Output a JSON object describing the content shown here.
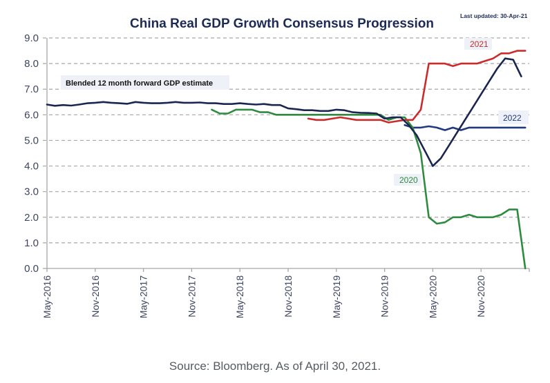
{
  "chart_data": {
    "type": "line",
    "title": "China Real GDP Growth Consensus Progression",
    "last_updated": "Last updated:  30-Apr-21",
    "xlabel": "",
    "ylabel": "",
    "ylim": [
      0,
      9
    ],
    "yticks": [
      "0.0",
      "1.0",
      "2.0",
      "3.0",
      "4.0",
      "5.0",
      "6.0",
      "7.0",
      "8.0",
      "9.0"
    ],
    "x_unit": "months since May-2016",
    "xlim": [
      0,
      60
    ],
    "xticks": [
      {
        "label": "May-2016",
        "x": 0
      },
      {
        "label": "Nov-2016",
        "x": 6
      },
      {
        "label": "May-2017",
        "x": 12
      },
      {
        "label": "Nov-2017",
        "x": 18
      },
      {
        "label": "May-2018",
        "x": 24
      },
      {
        "label": "Nov-2018",
        "x": 30
      },
      {
        "label": "May-2019",
        "x": 36
      },
      {
        "label": "Nov-2019",
        "x": 42
      },
      {
        "label": "May-2020",
        "x": 48
      },
      {
        "label": "Nov-2020",
        "x": 54
      }
    ],
    "grid": true,
    "annotation": "Blended 12 month forward GDP estimate",
    "series": [
      {
        "name": "Blended 12 month forward GDP estimate",
        "color": "#1a2550",
        "x": [
          0,
          1,
          2,
          3,
          4,
          5,
          6,
          7,
          8,
          9,
          10,
          11,
          12,
          13,
          14,
          15,
          16,
          17,
          18,
          19,
          20,
          21,
          22,
          23,
          24,
          25,
          26,
          27,
          28,
          29,
          30,
          31,
          32,
          33,
          34,
          35,
          36,
          37,
          38,
          39,
          40,
          41,
          42,
          43,
          44,
          45,
          46,
          47,
          48,
          49,
          50,
          51,
          52,
          53,
          54,
          55,
          56,
          57,
          58,
          59
        ],
        "values": [
          6.4,
          6.35,
          6.38,
          6.36,
          6.4,
          6.45,
          6.47,
          6.5,
          6.47,
          6.45,
          6.43,
          6.5,
          6.47,
          6.45,
          6.45,
          6.47,
          6.5,
          6.47,
          6.47,
          6.48,
          6.45,
          6.45,
          6.42,
          6.42,
          6.45,
          6.42,
          6.4,
          6.42,
          6.38,
          6.38,
          6.25,
          6.22,
          6.18,
          6.18,
          6.15,
          6.15,
          6.2,
          6.18,
          6.1,
          6.08,
          6.07,
          6.05,
          5.85,
          5.9,
          5.9,
          5.6,
          5.2,
          4.6,
          4.0,
          4.3,
          4.8,
          5.3,
          5.8,
          6.3,
          6.8,
          7.3,
          7.8,
          8.2,
          8.15,
          7.5
        ]
      },
      {
        "name": "2020",
        "color": "#2e8b3e",
        "x": [
          20.5,
          21.5,
          22.5,
          23.5,
          24.5,
          25.5,
          26.5,
          27.5,
          28.5,
          29.5,
          30.5,
          31.5,
          32.5,
          33.5,
          34.5,
          35.5,
          36.5,
          37.5,
          38.5,
          39.5,
          40.5,
          41.5,
          42.5,
          43.5,
          44.5,
          45.5,
          46.5,
          47.5,
          48.5,
          49.5,
          50.5,
          51.5,
          52.5,
          53.5,
          54.5,
          55.5,
          56.5,
          57.5,
          58.5,
          59.5
        ],
        "values": [
          6.2,
          6.05,
          6.05,
          6.2,
          6.2,
          6.2,
          6.1,
          6.1,
          6.0,
          6.0,
          6.0,
          6.0,
          6.0,
          6.0,
          6.0,
          6.0,
          6.0,
          6.0,
          6.0,
          6.0,
          6.0,
          6.0,
          5.8,
          5.9,
          5.9,
          5.5,
          4.5,
          2.0,
          1.75,
          1.8,
          2.0,
          2.0,
          2.1,
          2.0,
          2.0,
          2.0,
          2.1,
          2.3,
          2.3,
          0.0
        ]
      },
      {
        "name": "2021",
        "color": "#cc2b2b",
        "x": [
          32.5,
          33.5,
          34.5,
          35.5,
          36.5,
          37.5,
          38.5,
          39.5,
          40.5,
          41.5,
          42.5,
          43.5,
          44.5,
          45.5,
          46.5,
          47.5,
          48.5,
          49.5,
          50.5,
          51.5,
          52.5,
          53.5,
          54.5,
          55.5,
          56.5,
          57.5,
          58.5,
          59.5
        ],
        "values": [
          5.85,
          5.8,
          5.8,
          5.85,
          5.9,
          5.85,
          5.8,
          5.8,
          5.8,
          5.8,
          5.7,
          5.75,
          5.8,
          5.8,
          6.2,
          8.0,
          8.0,
          8.0,
          7.9,
          8.0,
          8.0,
          8.0,
          8.1,
          8.2,
          8.4,
          8.4,
          8.5,
          8.5
        ]
      },
      {
        "name": "2022",
        "color": "#1f3a7a",
        "x": [
          44.5,
          45.5,
          46.5,
          47.5,
          48.5,
          49.5,
          50.5,
          51.5,
          52.5,
          53.5,
          54.5,
          55.5,
          56.5,
          57.5,
          58.5,
          59.5
        ],
        "values": [
          5.6,
          5.5,
          5.5,
          5.55,
          5.5,
          5.4,
          5.5,
          5.4,
          5.5,
          5.5,
          5.5,
          5.5,
          5.5,
          5.5,
          5.5,
          5.5
        ]
      }
    ],
    "series_labels": [
      {
        "text": "2021",
        "color": "#cc2b2b"
      },
      {
        "text": "2022",
        "color": "#1f3a7a"
      },
      {
        "text": "2020",
        "color": "#2e8b3e"
      }
    ]
  },
  "footer": {
    "source": "Source: Bloomberg. As of April 30, 2021."
  }
}
